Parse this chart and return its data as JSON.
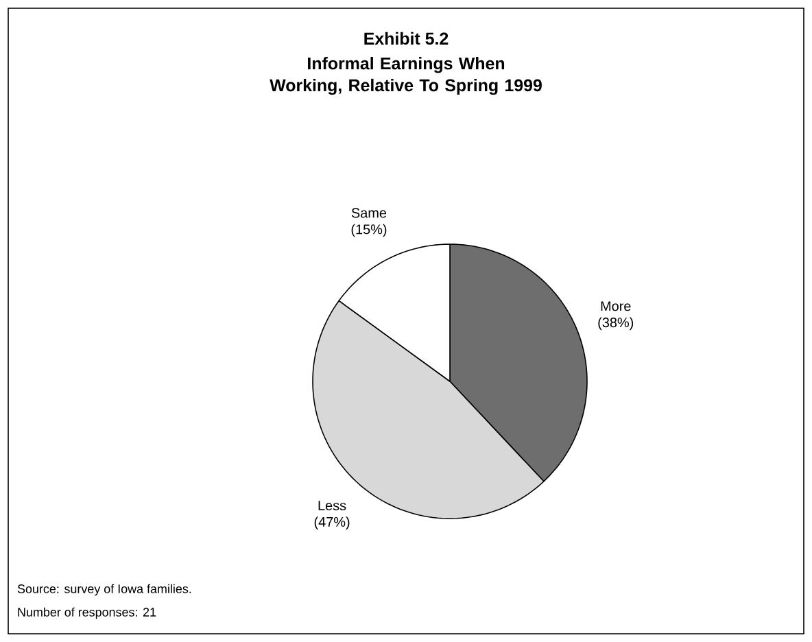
{
  "chart_data": {
    "type": "pie",
    "title": "Exhibit 5.2",
    "subtitle": "Informal Earnings When Working, Relative To Spring 1999",
    "categories": [
      "More",
      "Less",
      "Same"
    ],
    "values": [
      38,
      47,
      15
    ],
    "value_labels": [
      "(38%)",
      "(47%)",
      "(15%)"
    ],
    "colors": [
      "#6e6e6e",
      "#d8d8d8",
      "#ffffff"
    ],
    "annotations": [
      "Source: survey of Iowa families.",
      "Number of responses: 21"
    ]
  }
}
